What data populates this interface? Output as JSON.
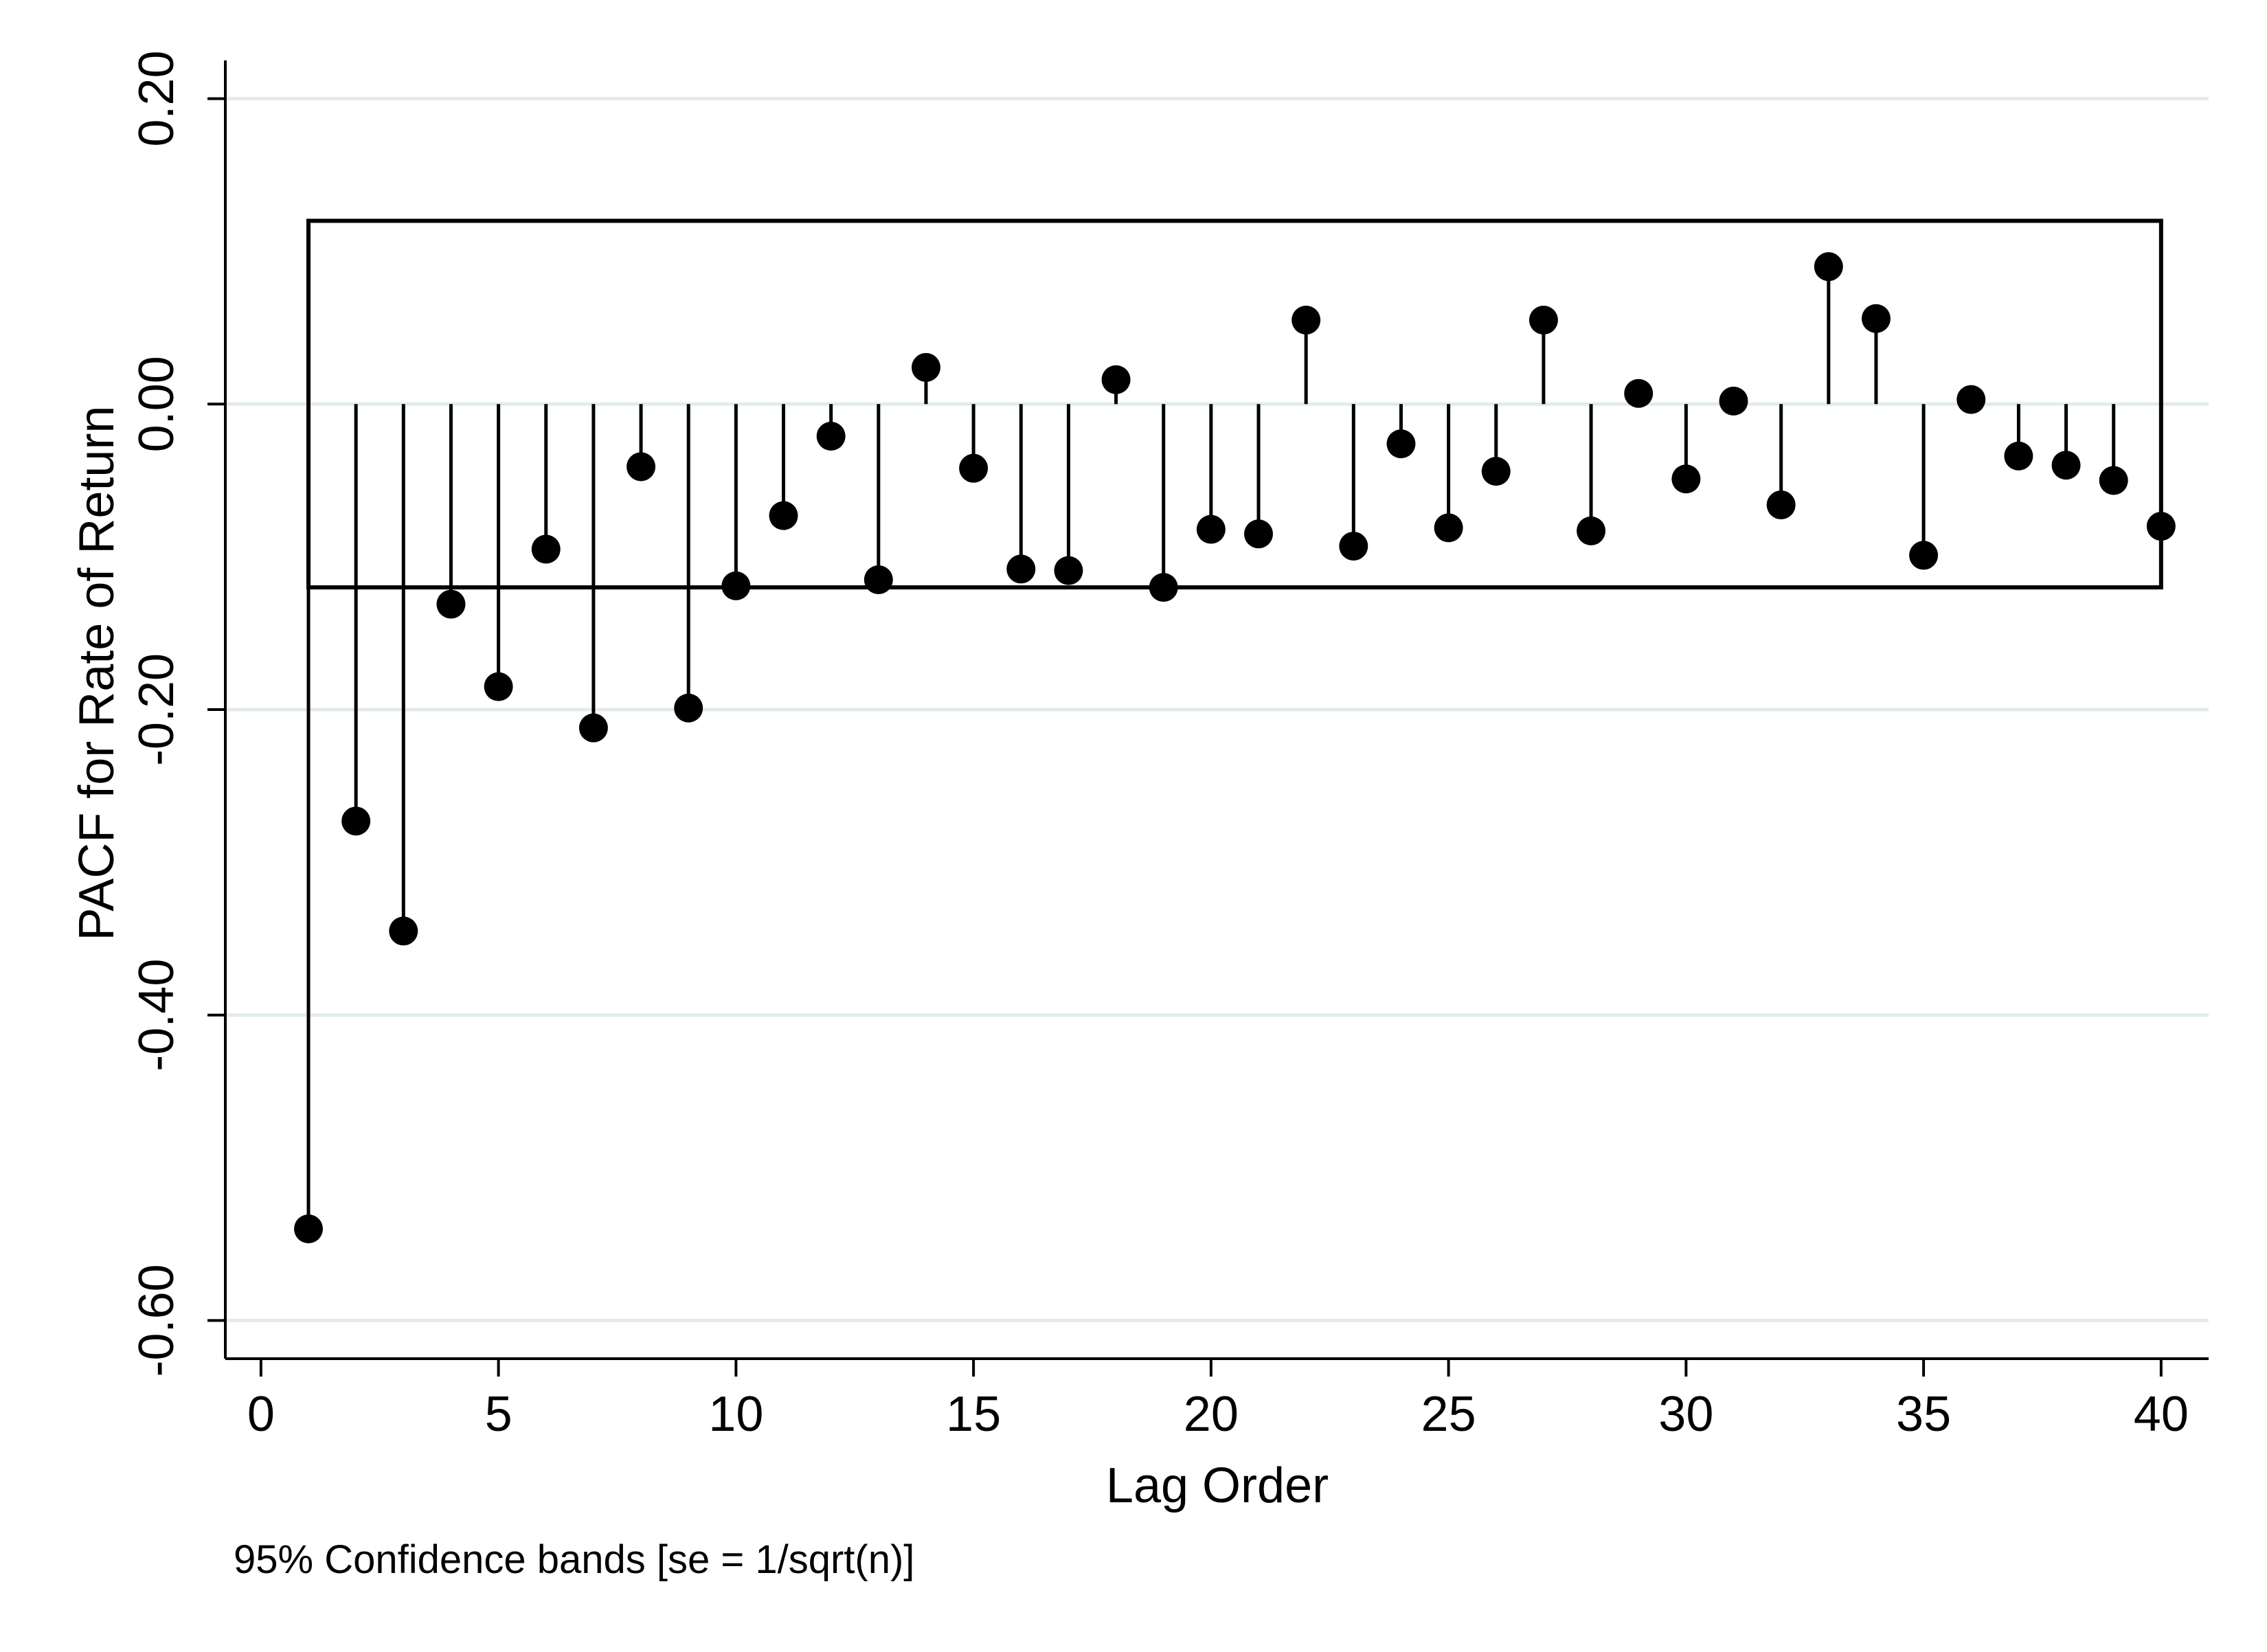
{
  "chart_data": {
    "type": "scatter",
    "style": "stem",
    "title": "",
    "xlabel": "Lag Order",
    "ylabel": "PACF for Rate of Return",
    "note": "95% Confidence bands [se = 1/sqrt(n)]",
    "xlim": [
      -0.75,
      41
    ],
    "ylim": [
      -0.625,
      0.225
    ],
    "x_ticks": [
      0,
      5,
      10,
      15,
      20,
      25,
      30,
      35,
      40
    ],
    "x_tick_labels": [
      "0",
      "5",
      "10",
      "15",
      "20",
      "25",
      "30",
      "35",
      "40"
    ],
    "y_ticks": [
      0.2,
      0.0,
      -0.2,
      -0.4,
      -0.6
    ],
    "y_tick_labels": [
      "0.20",
      "0.00",
      "-0.20",
      "-0.40",
      "-0.60"
    ],
    "grid": true,
    "confidence_band": {
      "upper": 0.12,
      "lower": -0.12,
      "from_lag": 1,
      "to_lag": 40
    },
    "series": [
      {
        "x": [
          1,
          2,
          3,
          4,
          5,
          6,
          7,
          8,
          9,
          10,
          11,
          12,
          13,
          14,
          15,
          16,
          17,
          18,
          19,
          20,
          21,
          22,
          23,
          24,
          25,
          26,
          27,
          28,
          29,
          30,
          31,
          32,
          33,
          34,
          35,
          36,
          37,
          38,
          39,
          40
        ],
        "values": [
          -0.54,
          -0.273,
          -0.345,
          -0.131,
          -0.185,
          -0.095,
          -0.212,
          -0.041,
          -0.199,
          -0.119,
          -0.073,
          -0.021,
          -0.115,
          0.024,
          -0.042,
          -0.108,
          -0.109,
          0.016,
          -0.12,
          -0.082,
          -0.085,
          0.055,
          -0.093,
          -0.026,
          -0.081,
          -0.044,
          0.055,
          -0.083,
          0.007,
          -0.049,
          0.002,
          -0.066,
          0.09,
          0.056,
          -0.099,
          0.003,
          -0.034,
          -0.04,
          -0.05,
          -0.08
        ]
      }
    ],
    "colors": {
      "marker": "#000000",
      "grid": "#e3ebeb",
      "band": "#000000"
    }
  }
}
